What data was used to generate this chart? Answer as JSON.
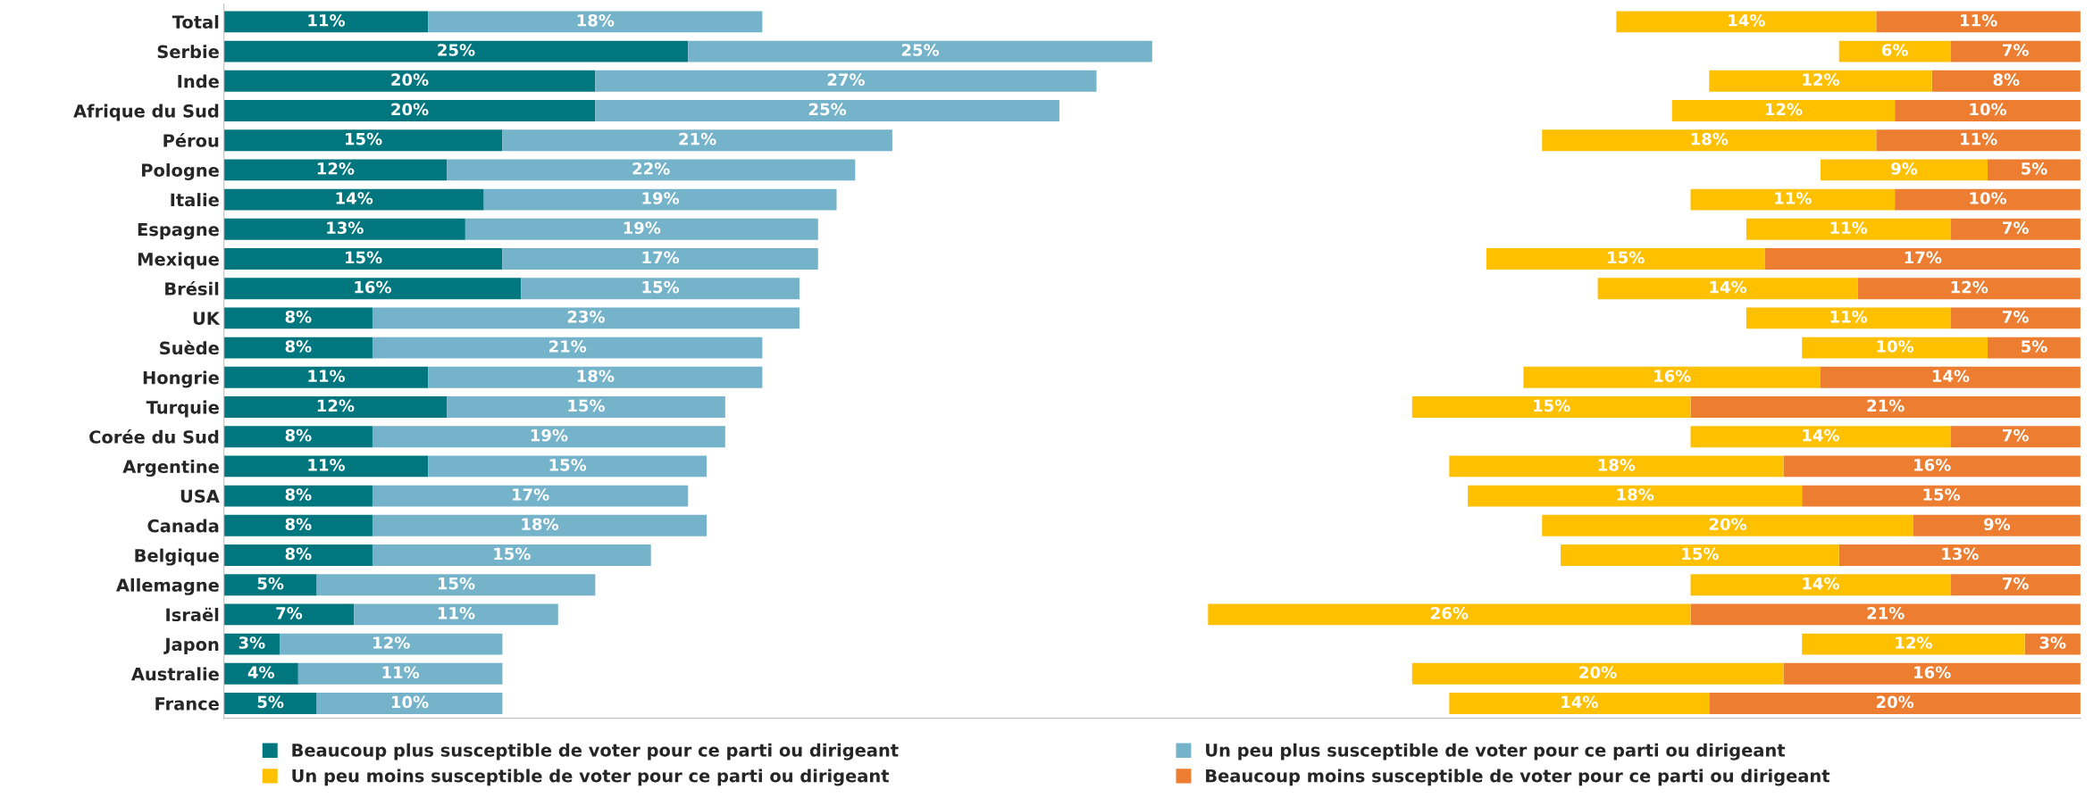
{
  "chart_data": [
    {
      "type": "bar",
      "orientation": "horizontal",
      "stacked": true,
      "grid": false,
      "legend": "bottom",
      "categories": [
        "Total",
        "Serbie",
        "Inde",
        "Afrique du Sud",
        "Pérou",
        "Pologne",
        "Italie",
        "Espagne",
        "Mexique",
        "Brésil",
        "UK",
        "Suède",
        "Hongrie",
        "Turquie",
        "Corée du Sud",
        "Argentine",
        "USA",
        "Canada",
        "Belgique",
        "Allemagne",
        "Israël",
        "Japon",
        "Australie",
        "France"
      ],
      "series": [
        {
          "name": "Beaucoup plus susceptible de voter pour ce parti ou dirigeant",
          "color": "#00777f",
          "values": [
            11,
            25,
            20,
            20,
            15,
            12,
            14,
            13,
            15,
            16,
            8,
            8,
            11,
            12,
            8,
            11,
            8,
            8,
            8,
            5,
            7,
            3,
            4,
            5
          ],
          "value_labels": [
            "11%",
            "25%",
            "20%",
            "20%",
            "15%",
            "12%",
            "14%",
            "13%",
            "15%",
            "16%",
            "8%",
            "8%",
            "11%",
            "12%",
            "8%",
            "11%",
            "8%",
            "8%",
            "8%",
            "5%",
            "7%",
            "3%",
            "4%",
            "5%"
          ]
        },
        {
          "name": "Un peu plus susceptible de voter pour ce parti ou dirigeant",
          "color": "#74b3c9",
          "values": [
            18,
            25,
            27,
            25,
            21,
            22,
            19,
            19,
            17,
            15,
            23,
            21,
            18,
            15,
            19,
            15,
            17,
            18,
            15,
            15,
            11,
            12,
            11,
            10
          ],
          "value_labels": [
            "18%",
            "25%",
            "27%",
            "25%",
            "21%",
            "22%",
            "19%",
            "19%",
            "17%",
            "15%",
            "23%",
            "21%",
            "18%",
            "15%",
            "19%",
            "15%",
            "17%",
            "18%",
            "15%",
            "15%",
            "11%",
            "12%",
            "11%",
            "10%"
          ]
        }
      ]
    },
    {
      "type": "bar",
      "orientation": "horizontal",
      "stacked": true,
      "grid": false,
      "legend": "bottom",
      "categories": [
        null,
        null,
        null,
        null,
        null,
        null,
        null,
        null,
        null,
        null,
        null,
        null,
        null,
        null,
        null,
        null,
        null,
        null,
        null,
        null,
        null,
        null,
        null,
        null
      ],
      "series": [
        {
          "name": "Beaucoup moins susceptible de voter pour ce parti ou dirigeant",
          "color": "#ed7d31",
          "values": [
            11,
            7,
            8,
            10,
            11,
            5,
            10,
            7,
            17,
            12,
            7,
            5,
            14,
            21,
            7,
            16,
            15,
            9,
            13,
            7,
            21,
            3,
            16,
            20
          ],
          "value_labels": [
            "11%",
            "7%",
            "8%",
            "10%",
            "11%",
            "5%",
            "10%",
            "7%",
            "17%",
            "12%",
            "7%",
            "5%",
            "14%",
            "21%",
            "7%",
            "16%",
            "15%",
            "9%",
            "13%",
            "7%",
            "21%",
            "3%",
            "16%",
            "20%"
          ]
        },
        {
          "name": "Un peu moins susceptible de voter pour ce parti ou dirigeant",
          "color": "#ffc000",
          "values": [
            14,
            6,
            12,
            12,
            18,
            9,
            11,
            11,
            15,
            14,
            11,
            10,
            16,
            15,
            14,
            18,
            18,
            20,
            15,
            14,
            26,
            12,
            20,
            14
          ],
          "value_labels": [
            "14%",
            "6%",
            "12%",
            "12%",
            "18%",
            "9%",
            "11%",
            "11%",
            "15%",
            "14%",
            "11%",
            "10%",
            "16%",
            "15%",
            "14%",
            "18%",
            "18%",
            "20%",
            "15%",
            "14%",
            "26%",
            "12%",
            "20%",
            "14%"
          ]
        }
      ]
    }
  ]
}
